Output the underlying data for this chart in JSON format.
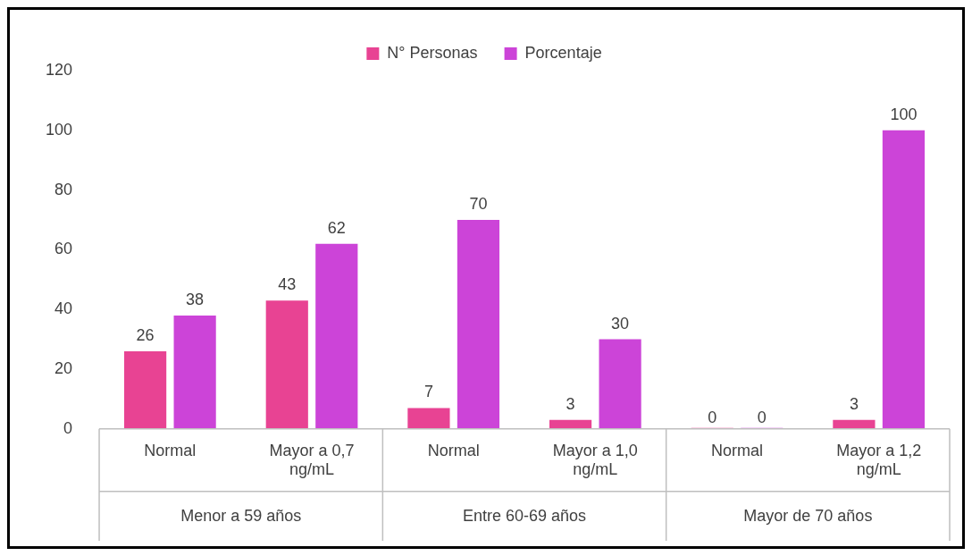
{
  "chart_data": {
    "type": "bar",
    "categories": [
      "Normal",
      "Mayor a 0,7 ng/mL",
      "Normal",
      "Mayor a 1,0 ng/mL",
      "Normal",
      "Mayor a 1,2 ng/mL"
    ],
    "series": [
      {
        "name": "N° Personas",
        "color": "#e84393",
        "values": [
          26,
          43,
          7,
          3,
          0,
          3
        ]
      },
      {
        "name": "Porcentaje",
        "color": "#cc44d8",
        "values": [
          38,
          62,
          70,
          30,
          0,
          100
        ]
      }
    ],
    "annotations": [
      "Menor a 59 años",
      "Entre 60-69 años",
      "Mayor de 70 años"
    ],
    "ylim": [
      0,
      120
    ],
    "yticks": [
      0,
      20,
      40,
      60,
      80,
      100,
      120
    ],
    "grid": false,
    "legend": "top",
    "data_labels": true
  }
}
